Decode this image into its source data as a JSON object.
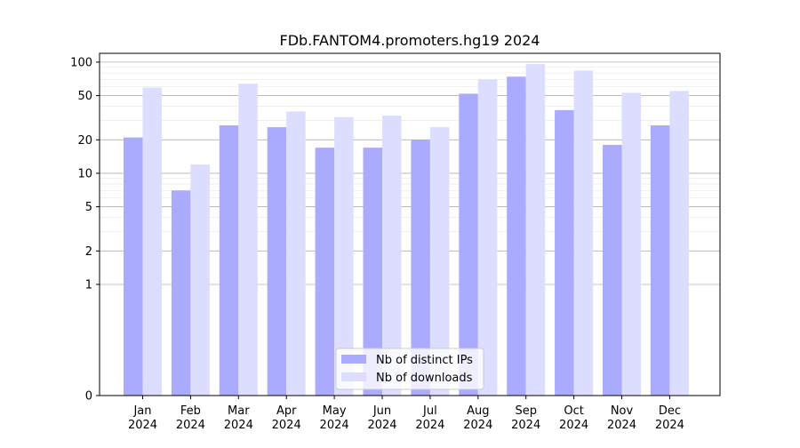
{
  "chart_data": {
    "type": "bar",
    "title": "FDb.FANTOM4.promoters.hg19 2024",
    "xlabel": "",
    "ylabel": "",
    "categories": [
      [
        "Jan",
        "2024"
      ],
      [
        "Feb",
        "2024"
      ],
      [
        "Mar",
        "2024"
      ],
      [
        "Apr",
        "2024"
      ],
      [
        "May",
        "2024"
      ],
      [
        "Jun",
        "2024"
      ],
      [
        "Jul",
        "2024"
      ],
      [
        "Aug",
        "2024"
      ],
      [
        "Sep",
        "2024"
      ],
      [
        "Oct",
        "2024"
      ],
      [
        "Nov",
        "2024"
      ],
      [
        "Dec",
        "2024"
      ]
    ],
    "series": [
      {
        "name": "Nb of distinct IPs",
        "color": "#aaaaff",
        "values": [
          21,
          7,
          27,
          26,
          17,
          17,
          20,
          52,
          74,
          37,
          18,
          27
        ]
      },
      {
        "name": "Nb of downloads",
        "color": "#ddddff",
        "values": [
          59,
          12,
          64,
          36,
          32,
          33,
          26,
          70,
          96,
          84,
          53,
          55
        ]
      }
    ],
    "y_scale": "symlog",
    "ylim": [
      0,
      120
    ],
    "y_ticks": [
      {
        "value": 0,
        "label": "0"
      },
      {
        "value": 1,
        "label": "1"
      },
      {
        "value": 2,
        "label": "2"
      },
      {
        "value": 5,
        "label": "5"
      },
      {
        "value": 10,
        "label": "10"
      },
      {
        "value": 20,
        "label": "20"
      },
      {
        "value": 50,
        "label": "50"
      },
      {
        "value": 100,
        "label": "100"
      }
    ],
    "grid": true,
    "legend_position": "bottom-center"
  }
}
